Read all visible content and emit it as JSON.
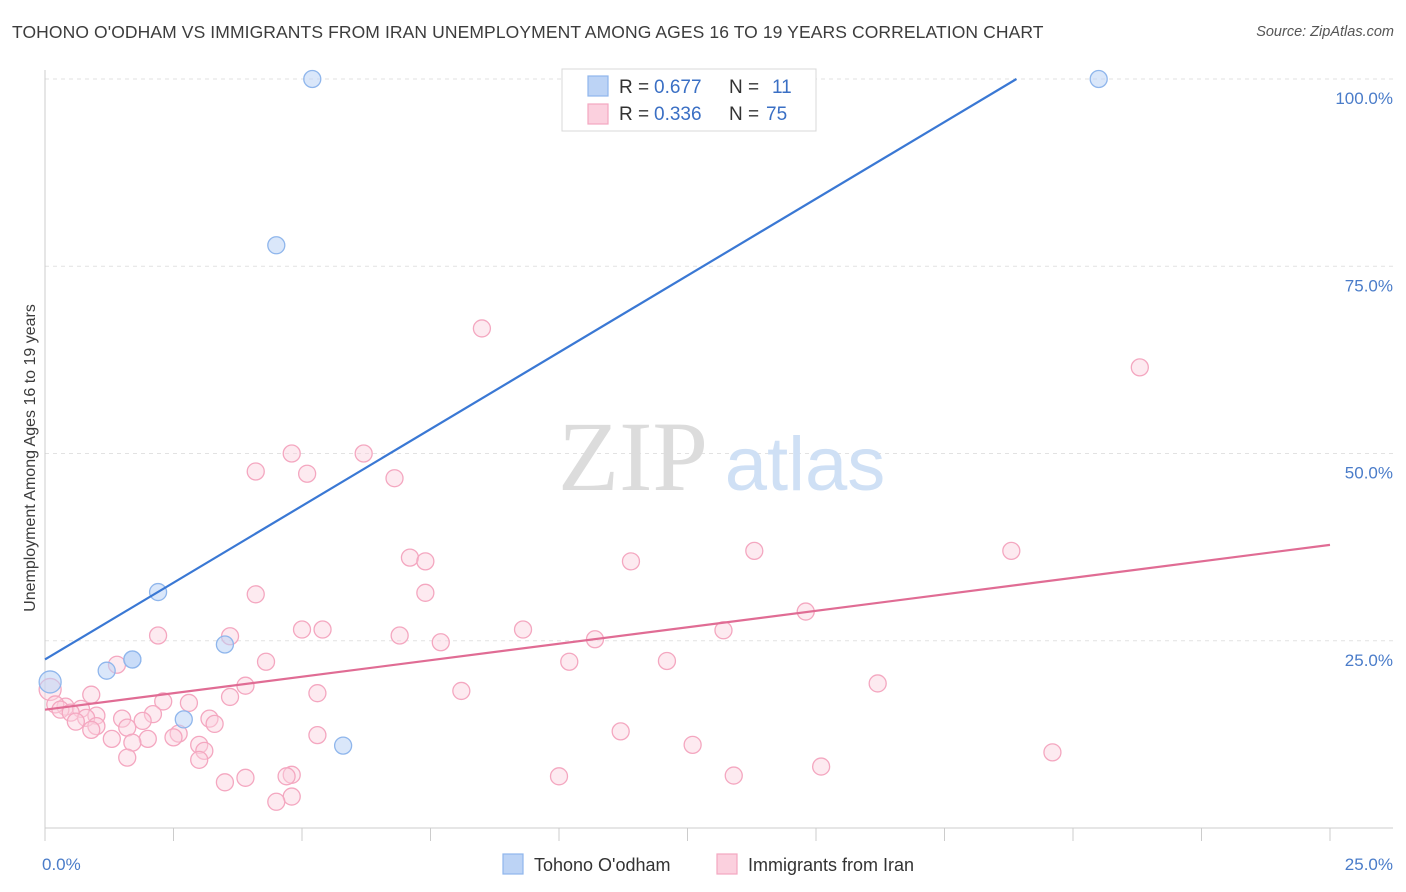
{
  "title": "TOHONO O'ODHAM VS IMMIGRANTS FROM IRAN UNEMPLOYMENT AMONG AGES 16 TO 19 YEARS CORRELATION CHART",
  "source": "Source: ZipAtlas.com",
  "watermark": {
    "zip": "ZIP",
    "atlas": "atlas"
  },
  "chart_data": {
    "type": "scatter",
    "xlabel": "",
    "ylabel": "Unemployment Among Ages 16 to 19 years",
    "xlim": [
      0,
      25
    ],
    "ylim": [
      0,
      105
    ],
    "x_tick_labels": [
      "0.0%",
      "25.0%"
    ],
    "y_ticks": [
      25,
      50,
      75,
      100
    ],
    "y_tick_labels": [
      "25.0%",
      "50.0%",
      "75.0%",
      "100.0%"
    ],
    "grid": true,
    "legend": {
      "placement": "top-center",
      "rows": [
        {
          "r_label": "R = ",
          "r_value": "0.677",
          "n_label": "N = ",
          "n_value": "11"
        },
        {
          "r_label": "R = ",
          "r_value": "0.336",
          "n_label": "N = ",
          "n_value": "75"
        }
      ]
    },
    "series": [
      {
        "name": "Tohono O'odham",
        "color": "#8fb6ec",
        "line_color": "#3a78d4",
        "trend": {
          "x": [
            0,
            18.9
          ],
          "y": [
            22.5,
            100
          ]
        },
        "points": [
          {
            "x": 5.2,
            "y": 100
          },
          {
            "x": 20.5,
            "y": 100
          },
          {
            "x": 4.5,
            "y": 77.8
          },
          {
            "x": 2.2,
            "y": 31.5
          },
          {
            "x": 3.5,
            "y": 24.5
          },
          {
            "x": 1.7,
            "y": 22.5
          },
          {
            "x": 1.7,
            "y": 22.5
          },
          {
            "x": 1.2,
            "y": 21
          },
          {
            "x": 0.1,
            "y": 19.5
          },
          {
            "x": 2.7,
            "y": 14.5
          },
          {
            "x": 5.8,
            "y": 11
          }
        ]
      },
      {
        "name": "Immigrants from Iran",
        "color": "#f4a7c0",
        "line_color": "#e06c94",
        "trend": {
          "x": [
            0,
            25
          ],
          "y": [
            15.8,
            37.8
          ]
        },
        "points": [
          {
            "x": 8.5,
            "y": 66.7
          },
          {
            "x": 21.3,
            "y": 61.5
          },
          {
            "x": 4.8,
            "y": 50
          },
          {
            "x": 6.2,
            "y": 50
          },
          {
            "x": 4.1,
            "y": 47.6
          },
          {
            "x": 5.1,
            "y": 47.3
          },
          {
            "x": 6.8,
            "y": 46.7
          },
          {
            "x": 7.1,
            "y": 36.1
          },
          {
            "x": 7.4,
            "y": 35.6
          },
          {
            "x": 11.4,
            "y": 35.6
          },
          {
            "x": 13.8,
            "y": 37
          },
          {
            "x": 18.8,
            "y": 37
          },
          {
            "x": 4.1,
            "y": 31.2
          },
          {
            "x": 7.4,
            "y": 31.4
          },
          {
            "x": 5.0,
            "y": 26.5
          },
          {
            "x": 5.4,
            "y": 26.5
          },
          {
            "x": 9.3,
            "y": 26.5
          },
          {
            "x": 13.2,
            "y": 26.4
          },
          {
            "x": 2.2,
            "y": 25.7
          },
          {
            "x": 3.6,
            "y": 25.6
          },
          {
            "x": 6.9,
            "y": 25.7
          },
          {
            "x": 10.7,
            "y": 25.2
          },
          {
            "x": 7.7,
            "y": 24.8
          },
          {
            "x": 14.8,
            "y": 28.9
          },
          {
            "x": 1.4,
            "y": 21.8
          },
          {
            "x": 4.3,
            "y": 22.2
          },
          {
            "x": 10.2,
            "y": 22.2
          },
          {
            "x": 12.1,
            "y": 22.3
          },
          {
            "x": 16.2,
            "y": 19.3
          },
          {
            "x": 3.9,
            "y": 19
          },
          {
            "x": 0.1,
            "y": 18.5
          },
          {
            "x": 5.3,
            "y": 18
          },
          {
            "x": 8.1,
            "y": 18.3
          },
          {
            "x": 0.9,
            "y": 17.8
          },
          {
            "x": 3.6,
            "y": 17.5
          },
          {
            "x": 2.3,
            "y": 16.9
          },
          {
            "x": 2.8,
            "y": 16.7
          },
          {
            "x": 0.4,
            "y": 16.2
          },
          {
            "x": 0.2,
            "y": 16.5
          },
          {
            "x": 0.7,
            "y": 15.9
          },
          {
            "x": 0.3,
            "y": 15.8
          },
          {
            "x": 0.5,
            "y": 15.4
          },
          {
            "x": 1.0,
            "y": 15.0
          },
          {
            "x": 2.1,
            "y": 15.2
          },
          {
            "x": 0.8,
            "y": 14.7
          },
          {
            "x": 0.6,
            "y": 14.2
          },
          {
            "x": 1.5,
            "y": 14.6
          },
          {
            "x": 3.2,
            "y": 14.6
          },
          {
            "x": 1.9,
            "y": 14.3
          },
          {
            "x": 3.3,
            "y": 13.9
          },
          {
            "x": 1.0,
            "y": 13.6
          },
          {
            "x": 1.6,
            "y": 13.4
          },
          {
            "x": 0.9,
            "y": 13.1
          },
          {
            "x": 2.6,
            "y": 12.6
          },
          {
            "x": 2.0,
            "y": 11.9
          },
          {
            "x": 2.5,
            "y": 12.1
          },
          {
            "x": 5.3,
            "y": 12.4
          },
          {
            "x": 1.3,
            "y": 11.9
          },
          {
            "x": 1.7,
            "y": 11.4
          },
          {
            "x": 11.2,
            "y": 12.9
          },
          {
            "x": 3.0,
            "y": 11.1
          },
          {
            "x": 12.6,
            "y": 11.1
          },
          {
            "x": 3.1,
            "y": 10.3
          },
          {
            "x": 1.6,
            "y": 9.4
          },
          {
            "x": 3.0,
            "y": 9.1
          },
          {
            "x": 19.6,
            "y": 10.1
          },
          {
            "x": 15.1,
            "y": 8.2
          },
          {
            "x": 4.8,
            "y": 7.1
          },
          {
            "x": 4.7,
            "y": 6.9
          },
          {
            "x": 3.9,
            "y": 6.7
          },
          {
            "x": 10.0,
            "y": 6.9
          },
          {
            "x": 13.4,
            "y": 7.0
          },
          {
            "x": 3.5,
            "y": 6.1
          },
          {
            "x": 4.8,
            "y": 4.2
          },
          {
            "x": 4.5,
            "y": 3.5
          }
        ]
      }
    ]
  }
}
